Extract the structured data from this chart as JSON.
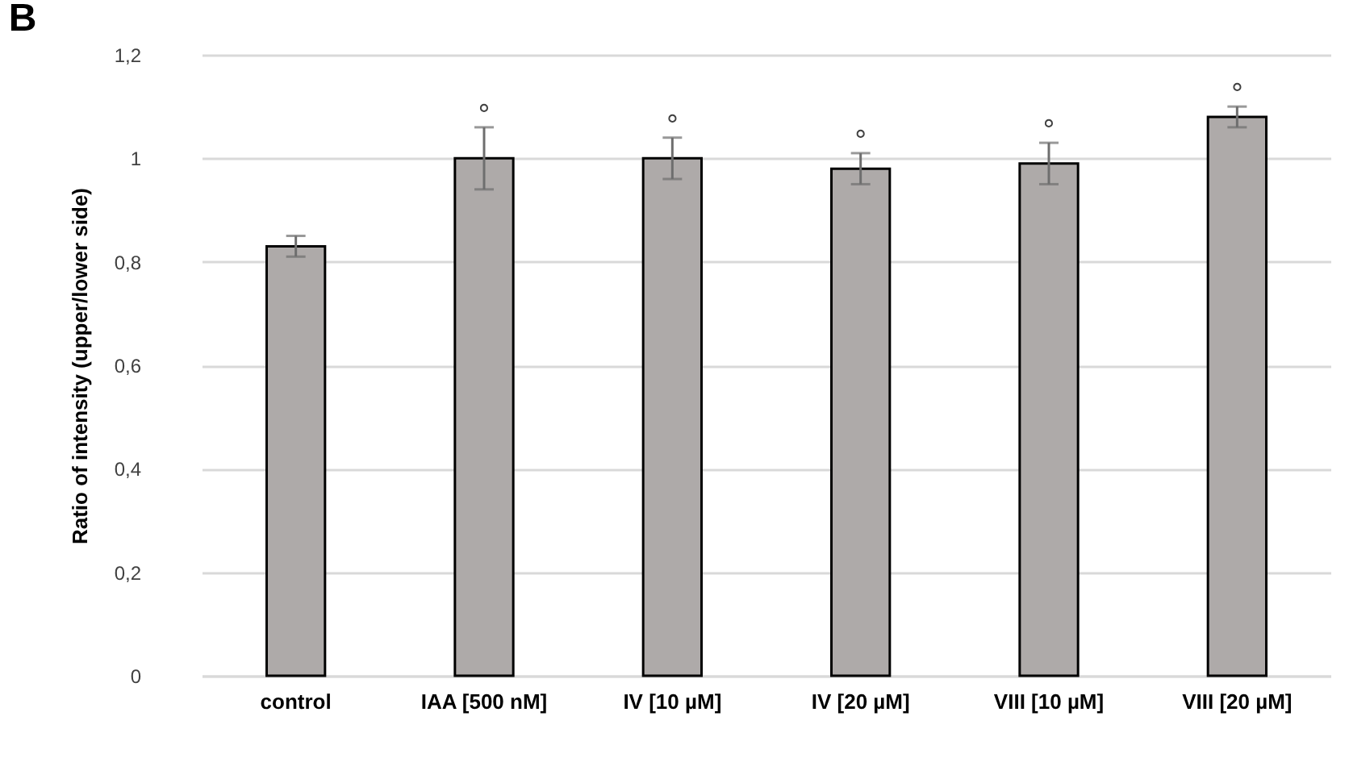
{
  "chart_data": {
    "type": "bar",
    "title": "B",
    "ylabel": "Ratio of intensity (upper/lower side)",
    "categories": [
      "control",
      "IAA [500 nM]",
      "IV [10 µM]",
      "IV [20 µM]",
      "VIII [10 µM]",
      "VIII [20 µM]"
    ],
    "values": [
      0.83,
      1.0,
      1.0,
      0.98,
      0.99,
      1.08
    ],
    "errors": [
      0.02,
      0.06,
      0.04,
      0.03,
      0.04,
      0.02
    ],
    "color": "#aeaaa9",
    "ylim": [
      0,
      1.2
    ],
    "yticks": [
      0,
      {
        "value": 0.2,
        "label": "0,2"
      },
      {
        "value": 0.4,
        "label": "0,4"
      },
      {
        "value": 0.6,
        "label": "0,6"
      },
      {
        "value": 0.8,
        "label": "0,8"
      },
      1,
      {
        "value": 1.2,
        "label": "1,2"
      }
    ],
    "grid": "y",
    "annotations": [
      "°",
      "°",
      "°",
      "°",
      "°"
    ]
  }
}
